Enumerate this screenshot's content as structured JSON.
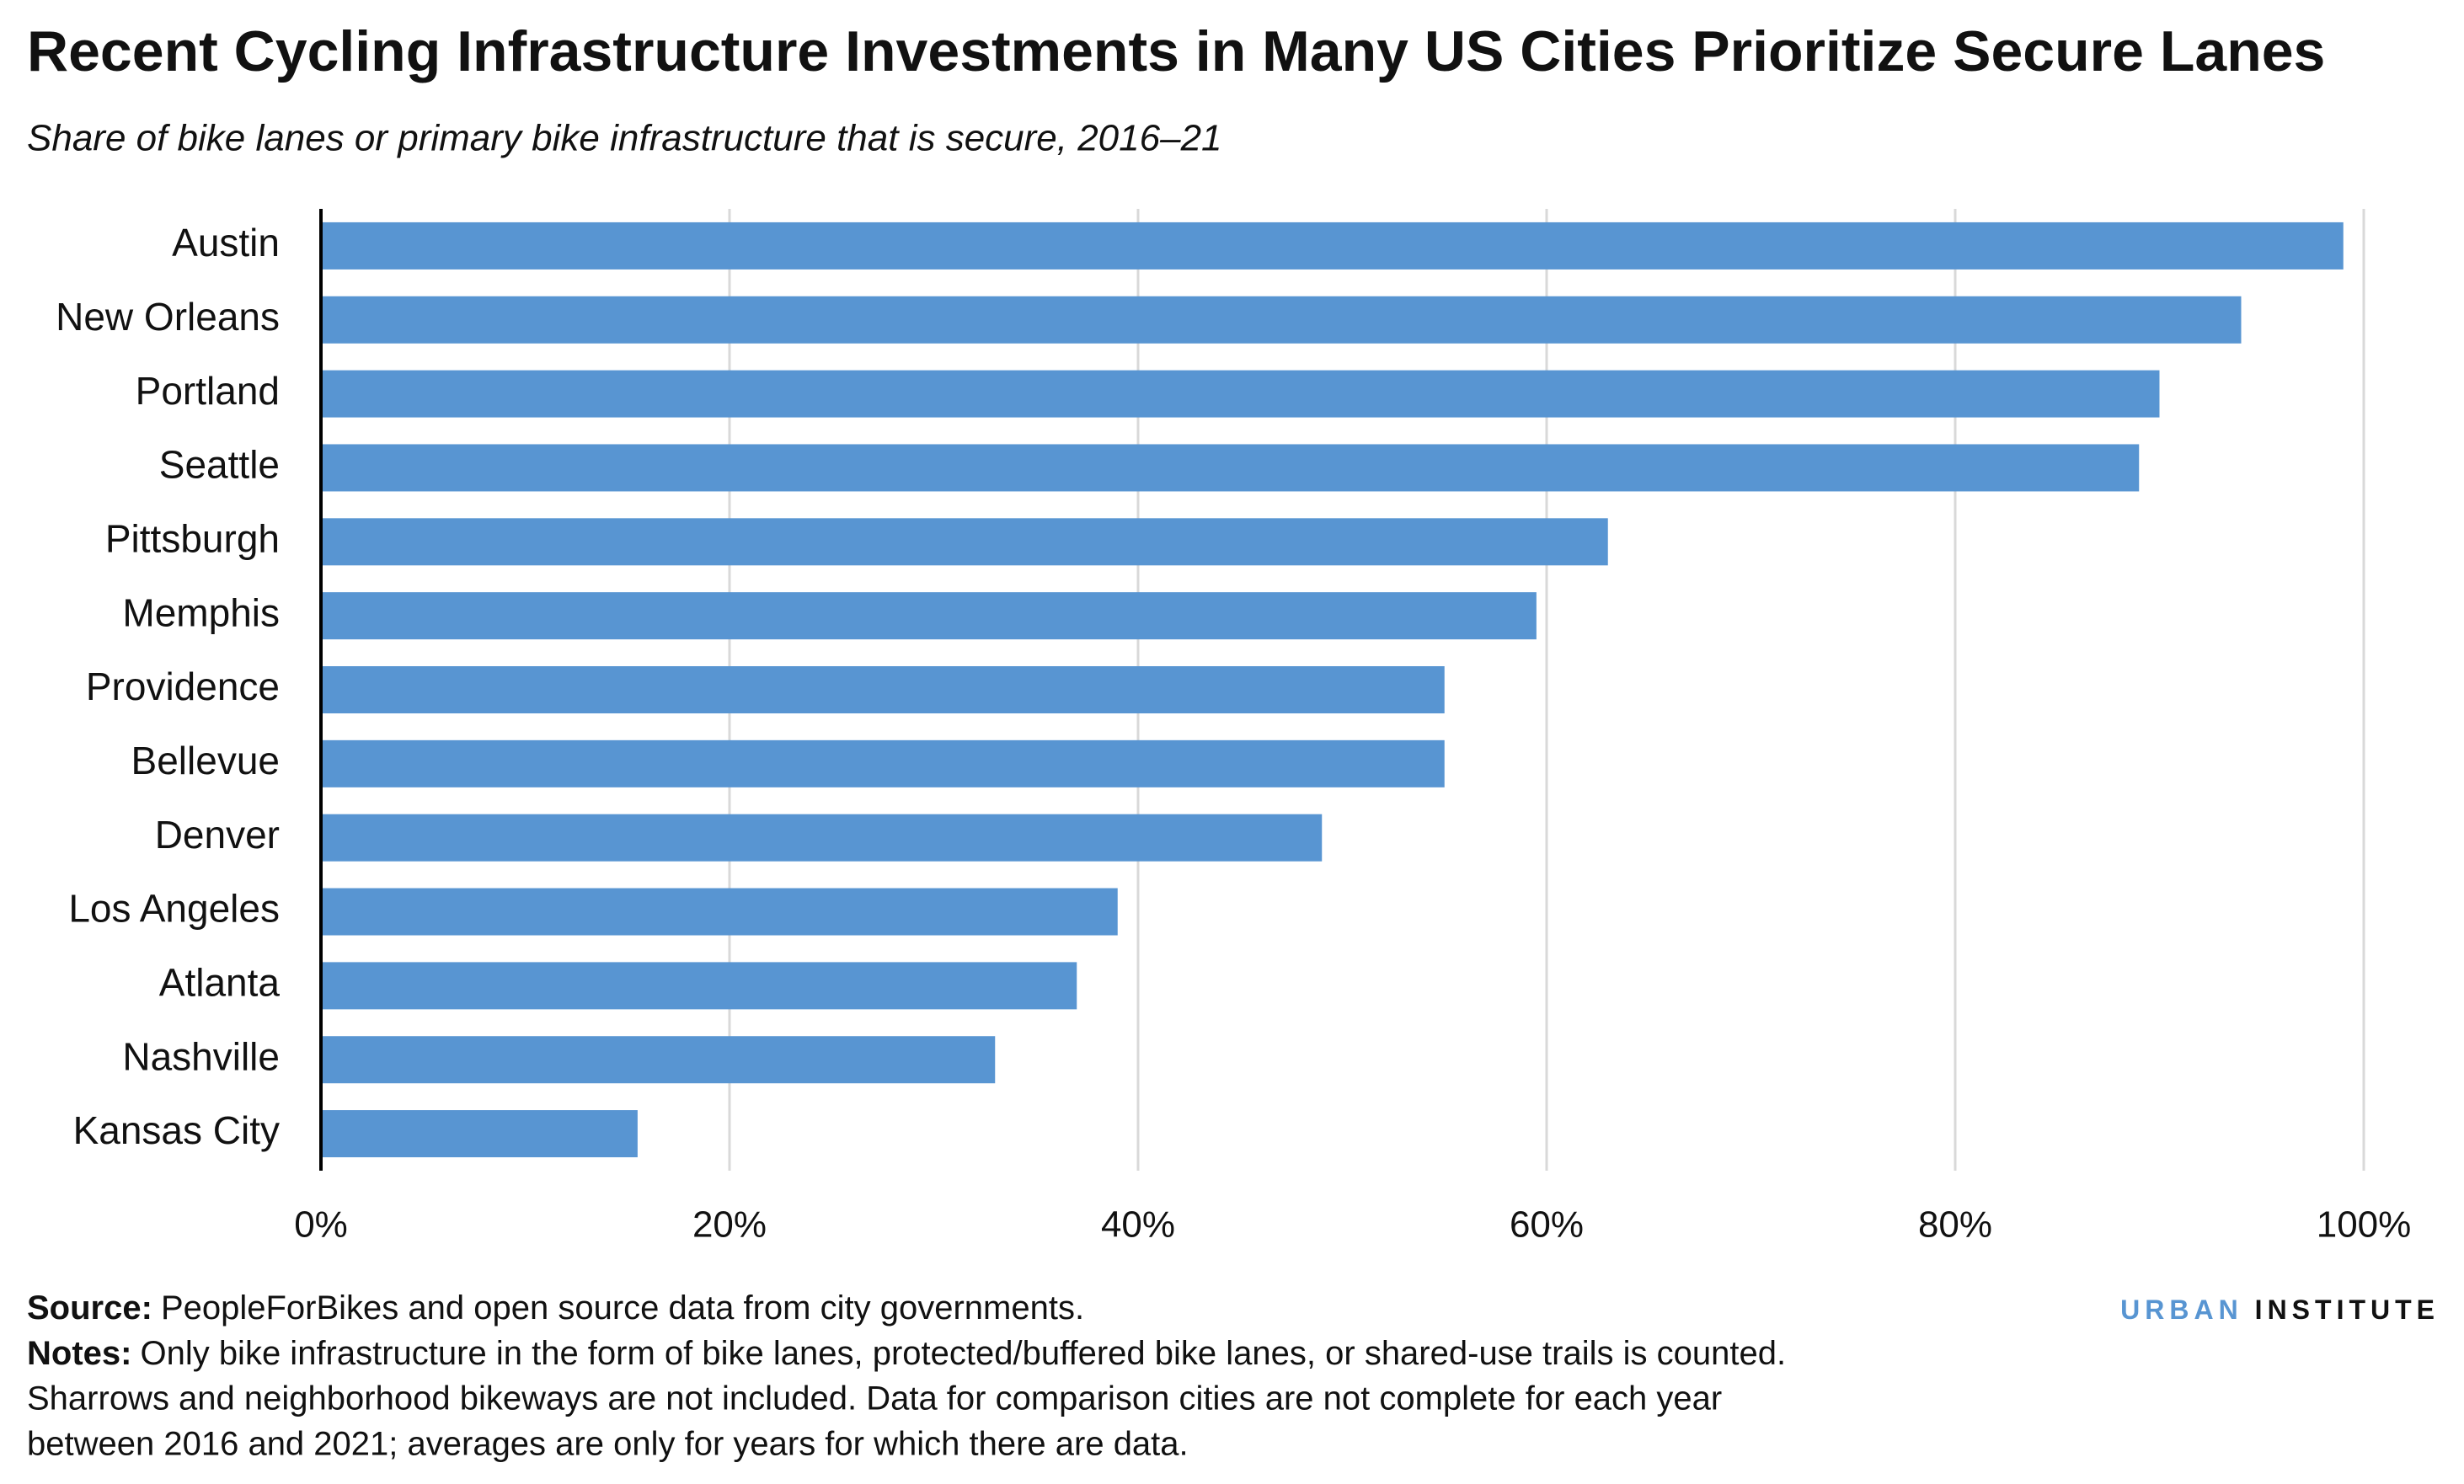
{
  "chart_data": {
    "type": "bar",
    "orientation": "horizontal",
    "title": "Recent Cycling Infrastructure Investments in Many US Cities Prioritize Secure Lanes",
    "subtitle": "Share of bike lanes or primary bike infrastructure that is secure, 2016–21",
    "categories": [
      "Austin",
      "New Orleans",
      "Portland",
      "Seattle",
      "Pittsburgh",
      "Memphis",
      "Providence",
      "Bellevue",
      "Denver",
      "Los Angeles",
      "Atlanta",
      "Nashville",
      "Kansas City"
    ],
    "values": [
      99,
      94,
      90,
      89,
      63,
      59.5,
      55,
      55,
      49,
      39,
      37,
      33,
      15.5
    ],
    "color": "#5895d2",
    "xlim": [
      0,
      100
    ],
    "xticks": [
      {
        "value": 0,
        "label": "0%"
      },
      {
        "value": 20,
        "label": "20%"
      },
      {
        "value": 40,
        "label": "40%"
      },
      {
        "value": 60,
        "label": "60%"
      },
      {
        "value": 80,
        "label": "80%"
      },
      {
        "value": 100,
        "label": "100%"
      }
    ],
    "grid": true
  },
  "footer": {
    "source": {
      "label": "Source:",
      "text": "PeopleForBikes and open source data from city governments."
    },
    "notes": {
      "label": "Notes:",
      "lines": [
        "Only bike infrastructure in the form of bike lanes, protected/buffered bike lanes, or shared-use trails is counted.",
        "Sharrows and neighborhood bikeways are not included. Data for comparison cities are not complete for each year",
        "between 2016 and 2021; averages are only for years for which there are data."
      ]
    },
    "brand": {
      "first": "URBAN",
      "second": "INSTITUTE"
    }
  }
}
